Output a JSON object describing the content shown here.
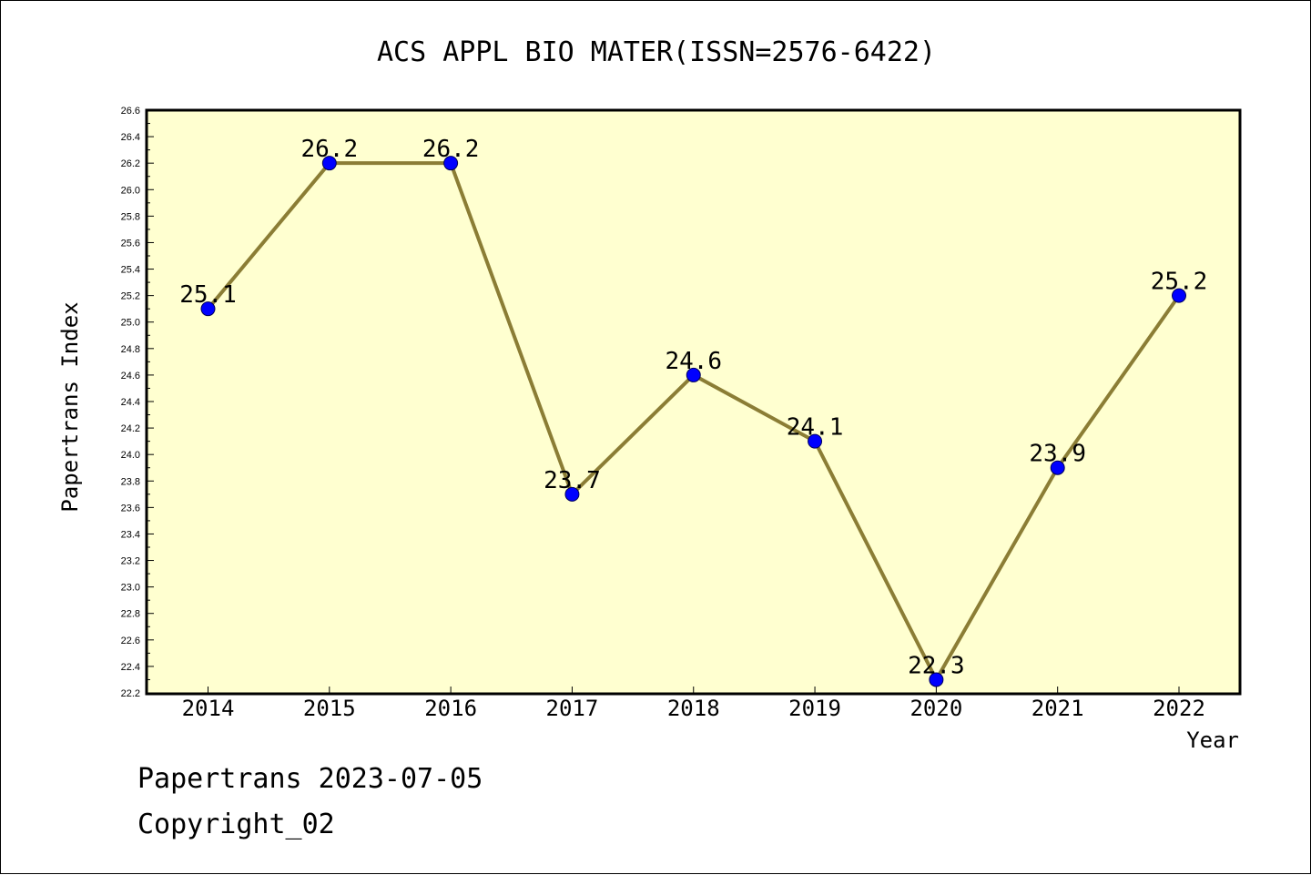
{
  "chart_data": {
    "type": "line",
    "title": "ACS APPL BIO MATER(ISSN=2576-6422)",
    "xlabel": "Year",
    "ylabel": "Papertrans Index",
    "categories": [
      "2014",
      "2015",
      "2016",
      "2017",
      "2018",
      "2019",
      "2020",
      "2021",
      "2022"
    ],
    "values": [
      25.1,
      26.2,
      26.2,
      23.7,
      24.6,
      24.1,
      22.3,
      23.9,
      25.2
    ],
    "value_labels": [
      "25.1",
      "26.2",
      "26.2",
      "23.7",
      "24.6",
      "24.1",
      "22.3",
      "23.9",
      "25.2"
    ],
    "ylim": [
      22.2,
      26.6
    ],
    "yticks": [
      "22.2",
      "22.4",
      "22.6",
      "22.8",
      "23.0",
      "23.2",
      "23.4",
      "23.6",
      "23.8",
      "24.0",
      "24.2",
      "24.4",
      "24.6",
      "24.8",
      "25.0",
      "25.2",
      "25.4",
      "25.6",
      "25.8",
      "26.0",
      "26.2",
      "26.4",
      "26.6"
    ],
    "grid": false,
    "colors": {
      "plot_background": "#ffffd0",
      "line": "#8b7d35",
      "marker": "#0000ff",
      "marker_edge": "#00005a"
    }
  },
  "footer": {
    "line1": "Papertrans 2023-07-05",
    "line2": "Copyright_02"
  }
}
